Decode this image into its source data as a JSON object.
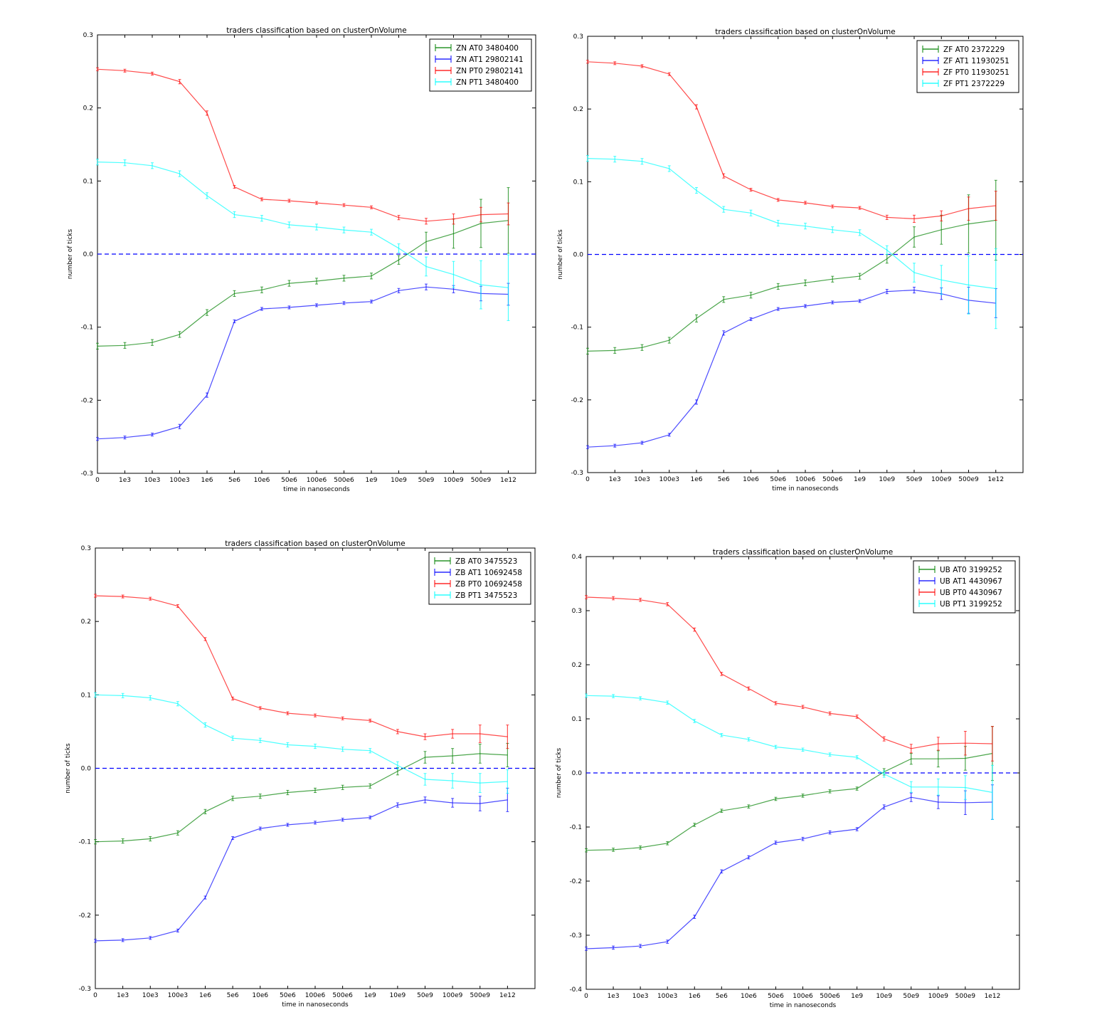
{
  "chart_data": [
    {
      "type": "line",
      "title": "traders classification based on clusterOnVolume",
      "xlabel": "time in nanoseconds",
      "ylabel": "number of ticks",
      "x_tick_labels": [
        "0",
        "1e3",
        "10e3",
        "100e3",
        "1e6",
        "5e6",
        "10e6",
        "50e6",
        "100e6",
        "500e6",
        "1e9",
        "10e9",
        "50e9",
        "100e9",
        "500e9",
        "1e12"
      ],
      "x_range": [
        0,
        16
      ],
      "ylim": [
        -0.3,
        0.3
      ],
      "y_ticks": [
        "-0.3",
        "-0.2",
        "-0.1",
        "0.0",
        "0.1",
        "0.2",
        "0.3"
      ],
      "y_tick_values": [
        -0.3,
        -0.2,
        -0.1,
        0.0,
        0.1,
        0.2,
        0.3
      ],
      "reference_line": 0.0,
      "legend_position": "upper right",
      "series": [
        {
          "name": "ZN AT0 3480400",
          "color": "#008000",
          "values": [
            -0.126,
            -0.125,
            -0.121,
            -0.11,
            -0.08,
            -0.054,
            -0.049,
            -0.04,
            -0.037,
            -0.033,
            -0.03,
            -0.008,
            0.017,
            0.028,
            0.042,
            0.046
          ],
          "errors": [
            0.004,
            0.004,
            0.004,
            0.004,
            0.004,
            0.004,
            0.004,
            0.004,
            0.004,
            0.004,
            0.004,
            0.006,
            0.013,
            0.02,
            0.033,
            0.045
          ]
        },
        {
          "name": "ZN AT1 29802141",
          "color": "#0000ff",
          "values": [
            -0.253,
            -0.251,
            -0.247,
            -0.236,
            -0.193,
            -0.092,
            -0.075,
            -0.073,
            -0.07,
            -0.067,
            -0.065,
            -0.05,
            -0.045,
            -0.048,
            -0.054,
            -0.055
          ],
          "errors": [
            0.002,
            0.002,
            0.002,
            0.003,
            0.003,
            0.002,
            0.002,
            0.002,
            0.002,
            0.002,
            0.002,
            0.003,
            0.004,
            0.005,
            0.01,
            0.015
          ]
        },
        {
          "name": "ZN PT0 29802141",
          "color": "#ff0000",
          "values": [
            0.253,
            0.251,
            0.247,
            0.236,
            0.193,
            0.092,
            0.075,
            0.073,
            0.07,
            0.067,
            0.064,
            0.05,
            0.045,
            0.048,
            0.054,
            0.055
          ],
          "errors": [
            0.002,
            0.002,
            0.002,
            0.003,
            0.003,
            0.002,
            0.002,
            0.002,
            0.002,
            0.002,
            0.002,
            0.003,
            0.004,
            0.007,
            0.01,
            0.015
          ]
        },
        {
          "name": "ZN PT1 3480400",
          "color": "#00ffff",
          "values": [
            0.126,
            0.125,
            0.121,
            0.11,
            0.08,
            0.054,
            0.049,
            0.04,
            0.037,
            0.033,
            0.03,
            0.008,
            -0.017,
            -0.028,
            -0.042,
            -0.046
          ],
          "errors": [
            0.004,
            0.004,
            0.004,
            0.004,
            0.004,
            0.004,
            0.004,
            0.004,
            0.004,
            0.004,
            0.004,
            0.006,
            0.013,
            0.018,
            0.033,
            0.045
          ]
        }
      ]
    },
    {
      "type": "line",
      "title": "traders classification based on clusterOnVolume",
      "xlabel": "time in nanoseconds",
      "ylabel": "number of ticks",
      "x_tick_labels": [
        "0",
        "1e3",
        "10e3",
        "100e3",
        "1e6",
        "5e6",
        "10e6",
        "50e6",
        "100e6",
        "500e6",
        "1e9",
        "10e9",
        "50e9",
        "100e9",
        "500e9",
        "1e12"
      ],
      "x_range": [
        0,
        16
      ],
      "ylim": [
        -0.3,
        0.3
      ],
      "y_ticks": [
        "-0.3",
        "-0.2",
        "-0.1",
        "0.0",
        "0.1",
        "0.2",
        "0.3"
      ],
      "y_tick_values": [
        -0.3,
        -0.2,
        -0.1,
        0.0,
        0.1,
        0.2,
        0.3
      ],
      "reference_line": 0.0,
      "legend_position": "upper right",
      "series": [
        {
          "name": "ZF AT0 2372229",
          "color": "#008000",
          "values": [
            -0.133,
            -0.132,
            -0.128,
            -0.118,
            -0.088,
            -0.062,
            -0.056,
            -0.044,
            -0.039,
            -0.034,
            -0.03,
            -0.006,
            0.024,
            0.034,
            0.042,
            0.047
          ],
          "errors": [
            0.004,
            0.004,
            0.004,
            0.004,
            0.005,
            0.004,
            0.004,
            0.004,
            0.004,
            0.004,
            0.004,
            0.006,
            0.014,
            0.02,
            0.04,
            0.055
          ]
        },
        {
          "name": "ZF AT1 11930251",
          "color": "#0000ff",
          "values": [
            -0.265,
            -0.263,
            -0.259,
            -0.248,
            -0.203,
            -0.108,
            -0.089,
            -0.075,
            -0.071,
            -0.066,
            -0.064,
            -0.051,
            -0.049,
            -0.054,
            -0.063,
            -0.067
          ],
          "errors": [
            0.002,
            0.002,
            0.002,
            0.002,
            0.003,
            0.003,
            0.002,
            0.002,
            0.002,
            0.002,
            0.002,
            0.003,
            0.004,
            0.008,
            0.018,
            0.02
          ]
        },
        {
          "name": "ZF PT0 11930251",
          "color": "#ff0000",
          "values": [
            0.265,
            0.263,
            0.259,
            0.248,
            0.203,
            0.108,
            0.089,
            0.075,
            0.071,
            0.066,
            0.064,
            0.051,
            0.049,
            0.053,
            0.063,
            0.067
          ],
          "errors": [
            0.002,
            0.002,
            0.002,
            0.002,
            0.003,
            0.003,
            0.002,
            0.002,
            0.002,
            0.002,
            0.002,
            0.003,
            0.005,
            0.007,
            0.016,
            0.02
          ]
        },
        {
          "name": "ZF PT1 2372229",
          "color": "#00ffff",
          "values": [
            0.132,
            0.131,
            0.128,
            0.118,
            0.088,
            0.062,
            0.057,
            0.043,
            0.039,
            0.034,
            0.03,
            0.006,
            -0.025,
            -0.035,
            -0.042,
            -0.047
          ],
          "errors": [
            0.004,
            0.004,
            0.004,
            0.004,
            0.004,
            0.004,
            0.004,
            0.004,
            0.004,
            0.004,
            0.004,
            0.006,
            0.013,
            0.02,
            0.04,
            0.055
          ]
        }
      ]
    },
    {
      "type": "line",
      "title": "traders classification based on clusterOnVolume",
      "xlabel": "time in nanoseconds",
      "ylabel": "number of ticks",
      "x_tick_labels": [
        "0",
        "1e3",
        "10e3",
        "100e3",
        "1e6",
        "5e6",
        "10e6",
        "50e6",
        "100e6",
        "500e6",
        "1e9",
        "10e9",
        "50e9",
        "100e9",
        "500e9",
        "1e12"
      ],
      "x_range": [
        0,
        16
      ],
      "ylim": [
        -0.3,
        0.3
      ],
      "y_ticks": [
        "-0.3",
        "-0.2",
        "-0.1",
        "0.0",
        "0.1",
        "0.2",
        "0.3"
      ],
      "y_tick_values": [
        -0.3,
        -0.2,
        -0.1,
        0.0,
        0.1,
        0.2,
        0.3
      ],
      "reference_line": 0.0,
      "legend_position": "upper right",
      "series": [
        {
          "name": "ZB AT0 3475523",
          "color": "#008000",
          "values": [
            -0.1,
            -0.099,
            -0.096,
            -0.088,
            -0.059,
            -0.041,
            -0.038,
            -0.033,
            -0.03,
            -0.026,
            -0.024,
            -0.004,
            0.015,
            0.017,
            0.02,
            0.018
          ],
          "errors": [
            0.003,
            0.003,
            0.003,
            0.003,
            0.003,
            0.003,
            0.003,
            0.003,
            0.003,
            0.003,
            0.003,
            0.005,
            0.008,
            0.01,
            0.013,
            0.016
          ]
        },
        {
          "name": "ZB AT1 10692458",
          "color": "#0000ff",
          "values": [
            -0.235,
            -0.234,
            -0.231,
            -0.221,
            -0.176,
            -0.095,
            -0.082,
            -0.077,
            -0.074,
            -0.07,
            -0.067,
            -0.05,
            -0.043,
            -0.047,
            -0.048,
            -0.043
          ],
          "errors": [
            0.002,
            0.002,
            0.002,
            0.002,
            0.002,
            0.002,
            0.002,
            0.002,
            0.002,
            0.002,
            0.002,
            0.003,
            0.004,
            0.006,
            0.01,
            0.016
          ]
        },
        {
          "name": "ZB PT0 10692458",
          "color": "#ff0000",
          "values": [
            0.235,
            0.234,
            0.231,
            0.221,
            0.176,
            0.095,
            0.082,
            0.075,
            0.072,
            0.068,
            0.065,
            0.05,
            0.043,
            0.047,
            0.047,
            0.043
          ],
          "errors": [
            0.002,
            0.002,
            0.002,
            0.002,
            0.002,
            0.002,
            0.002,
            0.002,
            0.002,
            0.002,
            0.002,
            0.003,
            0.004,
            0.006,
            0.012,
            0.016
          ]
        },
        {
          "name": "ZB PT1 3475523",
          "color": "#00ffff",
          "values": [
            0.1,
            0.099,
            0.096,
            0.088,
            0.059,
            0.041,
            0.038,
            0.032,
            0.03,
            0.026,
            0.024,
            0.004,
            -0.015,
            -0.017,
            -0.02,
            -0.018
          ],
          "errors": [
            0.003,
            0.003,
            0.003,
            0.003,
            0.003,
            0.003,
            0.003,
            0.003,
            0.003,
            0.003,
            0.003,
            0.005,
            0.008,
            0.01,
            0.013,
            0.016
          ]
        }
      ]
    },
    {
      "type": "line",
      "title": "traders classification based on clusterOnVolume",
      "xlabel": "time in nanoseconds",
      "ylabel": "number of ticks",
      "x_tick_labels": [
        "0",
        "1e3",
        "10e3",
        "100e3",
        "1e6",
        "5e6",
        "10e6",
        "50e6",
        "100e6",
        "500e6",
        "1e9",
        "10e9",
        "50e9",
        "100e9",
        "500e9",
        "1e12"
      ],
      "x_range": [
        0,
        16
      ],
      "ylim": [
        -0.4,
        0.4
      ],
      "y_ticks": [
        "-0.4",
        "-0.3",
        "-0.2",
        "-0.1",
        "0.0",
        "0.1",
        "0.2",
        "0.3",
        "0.4"
      ],
      "y_tick_values": [
        -0.4,
        -0.3,
        -0.2,
        -0.1,
        0.0,
        0.1,
        0.2,
        0.3,
        0.4
      ],
      "reference_line": 0.0,
      "legend_position": "upper right",
      "series": [
        {
          "name": "UB AT0 3199252",
          "color": "#008000",
          "values": [
            -0.143,
            -0.142,
            -0.138,
            -0.13,
            -0.096,
            -0.07,
            -0.062,
            -0.048,
            -0.042,
            -0.034,
            -0.029,
            0.002,
            0.026,
            0.026,
            0.027,
            0.036
          ],
          "errors": [
            0.003,
            0.003,
            0.003,
            0.003,
            0.003,
            0.003,
            0.003,
            0.003,
            0.003,
            0.003,
            0.003,
            0.006,
            0.01,
            0.015,
            0.022,
            0.05
          ]
        },
        {
          "name": "UB AT1 4430967",
          "color": "#0000ff",
          "values": [
            -0.325,
            -0.323,
            -0.32,
            -0.312,
            -0.266,
            -0.182,
            -0.156,
            -0.129,
            -0.122,
            -0.11,
            -0.104,
            -0.063,
            -0.045,
            -0.054,
            -0.055,
            -0.054
          ],
          "errors": [
            0.003,
            0.003,
            0.003,
            0.003,
            0.003,
            0.003,
            0.003,
            0.003,
            0.003,
            0.003,
            0.003,
            0.004,
            0.008,
            0.012,
            0.022,
            0.032
          ]
        },
        {
          "name": "UB PT0 4430967",
          "color": "#ff0000",
          "values": [
            0.325,
            0.323,
            0.32,
            0.312,
            0.265,
            0.183,
            0.156,
            0.129,
            0.122,
            0.11,
            0.104,
            0.063,
            0.045,
            0.054,
            0.055,
            0.054
          ],
          "errors": [
            0.003,
            0.003,
            0.003,
            0.003,
            0.003,
            0.003,
            0.003,
            0.003,
            0.003,
            0.003,
            0.003,
            0.004,
            0.008,
            0.012,
            0.022,
            0.032
          ]
        },
        {
          "name": "UB PT1 3199252",
          "color": "#00ffff",
          "values": [
            0.143,
            0.142,
            0.138,
            0.13,
            0.096,
            0.07,
            0.062,
            0.048,
            0.043,
            0.034,
            0.029,
            -0.002,
            -0.026,
            -0.026,
            -0.027,
            -0.036
          ],
          "errors": [
            0.003,
            0.003,
            0.003,
            0.003,
            0.003,
            0.003,
            0.003,
            0.003,
            0.003,
            0.003,
            0.003,
            0.006,
            0.01,
            0.015,
            0.022,
            0.05
          ]
        }
      ]
    }
  ]
}
